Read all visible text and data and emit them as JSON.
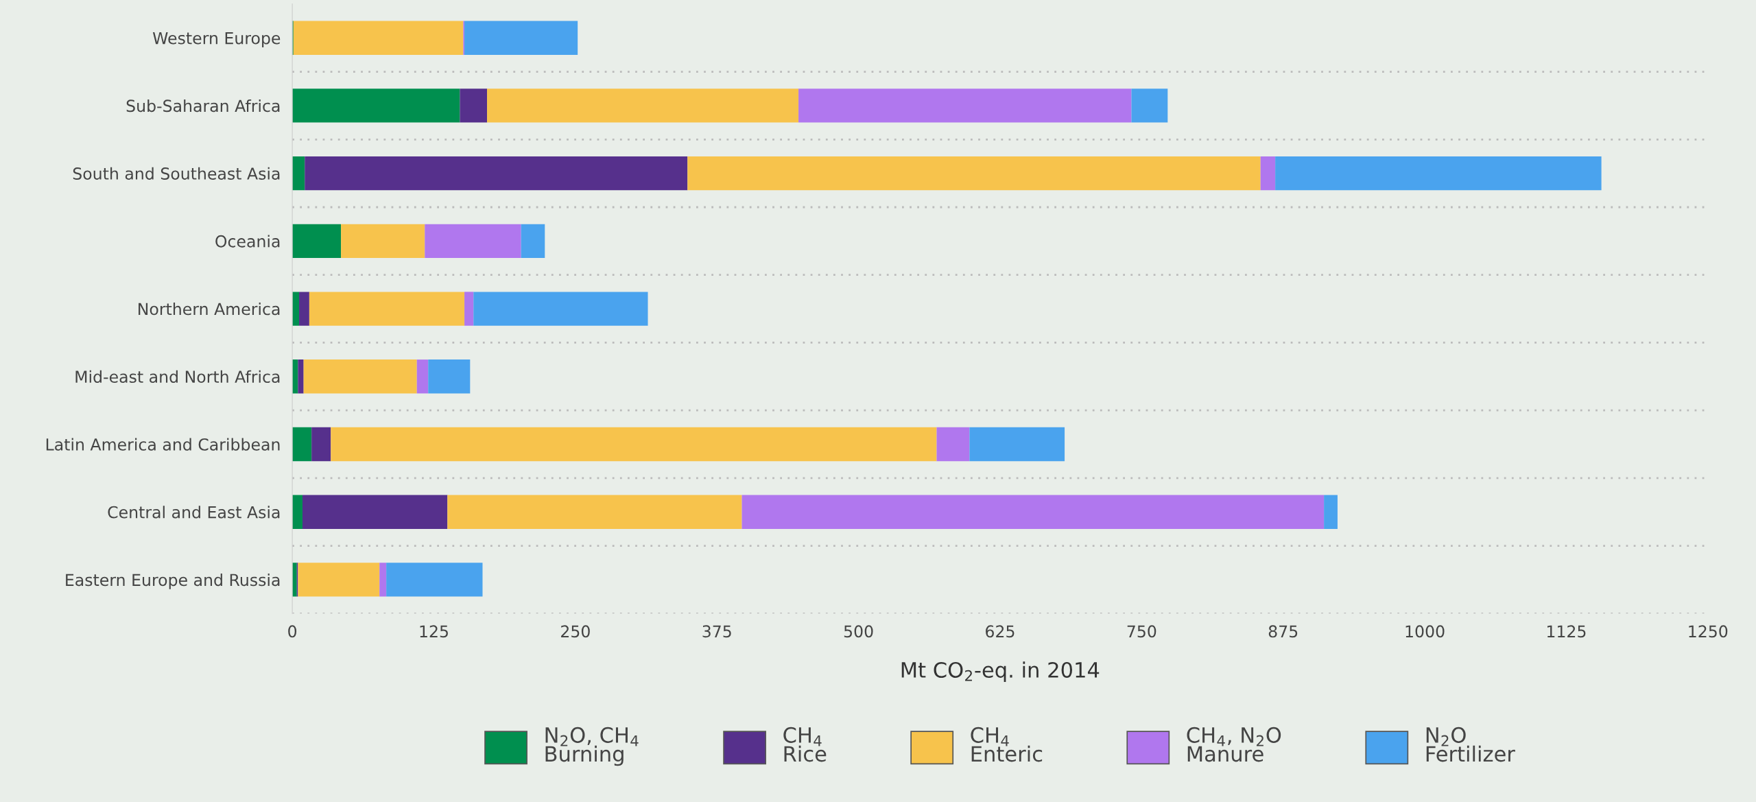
{
  "chart_data": {
    "type": "bar",
    "orientation": "horizontal",
    "stacked": true,
    "categories": [
      "Western Europe",
      "Sub-Saharan Africa",
      "South and Southeast Asia",
      "Oceania",
      "Northern America",
      "Mid-east and North Africa",
      "Latin America and Caribbean",
      "Central and East Asia",
      "Eastern Europe and Russia"
    ],
    "series": [
      {
        "name": "N$_{2}$O, CH$_{4}$\nBurning",
        "color": "#008f4f",
        "values": [
          1,
          148,
          11,
          43,
          6,
          5,
          17,
          9,
          4
        ]
      },
      {
        "name": "CH$_{4}$\nRice",
        "color": "#56308c",
        "values": [
          0,
          24,
          338,
          0,
          9,
          5,
          17,
          128,
          1
        ]
      },
      {
        "name": "CH$_{4}$\nEnteric",
        "color": "#f7c34c",
        "values": [
          150,
          275,
          506,
          74,
          137,
          100,
          535,
          260,
          72
        ]
      },
      {
        "name": "CH$_{4}$, N$_{2}$O\nManure",
        "color": "#b077ee",
        "values": [
          1,
          294,
          13,
          85,
          8,
          10,
          29,
          514,
          6
        ]
      },
      {
        "name": "N$_{2}$O\nFertilizer",
        "color": "#4aa3ee",
        "values": [
          100,
          32,
          288,
          21,
          154,
          37,
          84,
          12,
          85
        ]
      }
    ],
    "xlabel": "Mt CO$_{2}$-eq. in 2014",
    "xlim": [
      0,
      1250
    ],
    "xticks": [
      0,
      125,
      250,
      375,
      500,
      625,
      750,
      875,
      1000,
      1125,
      1250
    ],
    "grid": "y",
    "legend": "bottom"
  }
}
